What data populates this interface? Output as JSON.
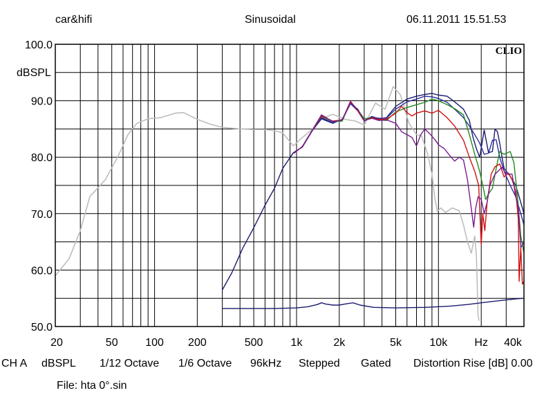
{
  "header": {
    "left": "car&hifi",
    "center": "Sinusoidal",
    "right": "06.11.2011 15.51.53"
  },
  "brand": "CLIO",
  "footer": {
    "items": [
      "CH A",
      "dBSPL",
      "1/12 Octave",
      "1/6 Octave",
      "96kHz",
      "Stepped",
      "Gated",
      "Distortion Rise [dB] 0.00"
    ],
    "file": "File: hta 0°.sin"
  },
  "colors": {
    "grid": "#000000",
    "gray": "#bdbdbd",
    "navy": "#1a1a6e",
    "blue": "#2a2aa0",
    "green": "#1f8a1f",
    "red": "#d01010",
    "purple": "#7a1a90"
  },
  "chart_data": {
    "type": "line",
    "x_scale": "log",
    "xlim": [
      20,
      40000
    ],
    "ylim": [
      50,
      100
    ],
    "ylabel": "dBSPL",
    "y_ticks": [
      {
        "v": 50,
        "label": "50.0"
      },
      {
        "v": 60,
        "label": "60.0"
      },
      {
        "v": 70,
        "label": "70.0"
      },
      {
        "v": 80,
        "label": "80.0"
      },
      {
        "v": 90,
        "label": "90.0"
      },
      {
        "v": 100,
        "label": "100.0"
      }
    ],
    "x_ticks": [
      {
        "v": 20,
        "label": "20"
      },
      {
        "v": 50,
        "label": "50"
      },
      {
        "v": 100,
        "label": "100"
      },
      {
        "v": 200,
        "label": "200"
      },
      {
        "v": 500,
        "label": "500"
      },
      {
        "v": 1000,
        "label": "1k"
      },
      {
        "v": 2000,
        "label": "2k"
      },
      {
        "v": 5000,
        "label": "5k"
      },
      {
        "v": 10000,
        "label": "10k"
      },
      {
        "v": 20000,
        "label": "Hz"
      },
      {
        "v": 40000,
        "label": "40k"
      }
    ],
    "grid": true,
    "series": [
      {
        "color": "gray",
        "points": [
          [
            20,
            59
          ],
          [
            25,
            62
          ],
          [
            30,
            67
          ],
          [
            35,
            73
          ],
          [
            45,
            76
          ],
          [
            55,
            80
          ],
          [
            65,
            84
          ],
          [
            75,
            86
          ],
          [
            90,
            86.8
          ],
          [
            110,
            87
          ],
          [
            140,
            87.8
          ],
          [
            160,
            87.9
          ],
          [
            200,
            86.7
          ],
          [
            250,
            85.8
          ],
          [
            300,
            85.3
          ],
          [
            400,
            85
          ],
          [
            500,
            84.9
          ],
          [
            600,
            84.9
          ],
          [
            700,
            84.7
          ],
          [
            800,
            84.3
          ],
          [
            950,
            82
          ],
          [
            1100,
            83.5
          ],
          [
            1300,
            85
          ],
          [
            1500,
            86.8
          ],
          [
            1800,
            87.6
          ],
          [
            2200,
            86.7
          ],
          [
            2600,
            86.4
          ],
          [
            3000,
            85.7
          ],
          [
            3600,
            89.6
          ],
          [
            4200,
            88.5
          ],
          [
            4800,
            92.5
          ],
          [
            5400,
            91
          ],
          [
            6200,
            86
          ],
          [
            7000,
            84
          ],
          [
            7600,
            83.8
          ],
          [
            8400,
            80.5
          ],
          [
            9000,
            77
          ],
          [
            9400,
            73
          ],
          [
            9800,
            70.4
          ],
          [
            10400,
            71
          ],
          [
            11200,
            70.2
          ],
          [
            12500,
            71
          ],
          [
            14000,
            70.5
          ],
          [
            15000,
            68
          ],
          [
            16000,
            65
          ],
          [
            17000,
            63
          ],
          [
            17500,
            64.5
          ],
          [
            18000,
            66
          ],
          [
            18500,
            62.5
          ],
          [
            19000,
            52
          ],
          [
            19300,
            51
          ]
        ]
      },
      {
        "color": "navy",
        "points": [
          [
            300,
            56.5
          ],
          [
            350,
            59.5
          ],
          [
            420,
            64
          ],
          [
            500,
            67.5
          ],
          [
            600,
            71.5
          ],
          [
            700,
            74.5
          ],
          [
            800,
            78
          ],
          [
            950,
            80.8
          ],
          [
            1100,
            81.8
          ],
          [
            1300,
            84.8
          ],
          [
            1500,
            86.8
          ],
          [
            1800,
            86
          ],
          [
            2100,
            86.7
          ],
          [
            2400,
            89.5
          ],
          [
            2700,
            88.5
          ],
          [
            3000,
            86.5
          ],
          [
            3400,
            87.2
          ],
          [
            3800,
            86.8
          ],
          [
            4300,
            87
          ],
          [
            5000,
            89
          ],
          [
            6000,
            90.3
          ],
          [
            7000,
            90.8
          ],
          [
            8000,
            91.1
          ],
          [
            9000,
            91.3
          ],
          [
            10000,
            91
          ],
          [
            11500,
            90.8
          ],
          [
            13000,
            89.8
          ],
          [
            15000,
            88.5
          ],
          [
            16500,
            86.5
          ],
          [
            17500,
            83.5
          ],
          [
            18500,
            81.5
          ],
          [
            19500,
            80
          ],
          [
            21000,
            84.8
          ],
          [
            22500,
            80.8
          ],
          [
            24000,
            81
          ],
          [
            25000,
            85
          ],
          [
            26000,
            84.5
          ],
          [
            27000,
            82.5
          ],
          [
            28000,
            80
          ],
          [
            29000,
            78
          ],
          [
            32000,
            76.6
          ],
          [
            35000,
            75
          ],
          [
            37000,
            73
          ],
          [
            40000,
            70
          ]
        ]
      },
      {
        "color": "blue",
        "points": [
          [
            960,
            80.7
          ],
          [
            1100,
            81.9
          ],
          [
            1300,
            84.9
          ],
          [
            1500,
            87
          ],
          [
            1800,
            86.1
          ],
          [
            2100,
            86.6
          ],
          [
            2400,
            89.5
          ],
          [
            2700,
            88.2
          ],
          [
            3000,
            86.4
          ],
          [
            3400,
            87.1
          ],
          [
            3800,
            86.9
          ],
          [
            4300,
            86.9
          ],
          [
            5000,
            88.5
          ],
          [
            6000,
            89.8
          ],
          [
            7000,
            90.3
          ],
          [
            8000,
            90.8
          ],
          [
            9000,
            90.7
          ],
          [
            10000,
            90.4
          ],
          [
            11500,
            89.7
          ],
          [
            13000,
            88.5
          ],
          [
            15000,
            87
          ],
          [
            16500,
            85.5
          ],
          [
            18000,
            84
          ],
          [
            19500,
            82.5
          ],
          [
            21000,
            80.5
          ],
          [
            22500,
            80.7
          ],
          [
            24000,
            83
          ],
          [
            25500,
            83.1
          ],
          [
            27000,
            80
          ],
          [
            29000,
            77.5
          ],
          [
            32000,
            75
          ],
          [
            35000,
            73
          ],
          [
            38000,
            70
          ],
          [
            40000,
            68
          ]
        ]
      },
      {
        "color": "green",
        "points": [
          [
            960,
            80.7
          ],
          [
            1100,
            81.9
          ],
          [
            1300,
            84.9
          ],
          [
            1500,
            87.2
          ],
          [
            1800,
            86.3
          ],
          [
            2100,
            86.4
          ],
          [
            2400,
            89.8
          ],
          [
            2700,
            88.4
          ],
          [
            3000,
            86.8
          ],
          [
            3400,
            87
          ],
          [
            3800,
            86.6
          ],
          [
            4300,
            86.5
          ],
          [
            5000,
            88
          ],
          [
            6000,
            88.8
          ],
          [
            7000,
            89.3
          ],
          [
            8000,
            89.7
          ],
          [
            9000,
            90.3
          ],
          [
            10000,
            90
          ],
          [
            11500,
            89.3
          ],
          [
            13000,
            88.6
          ],
          [
            15000,
            87.5
          ],
          [
            16500,
            84
          ],
          [
            18000,
            80.5
          ],
          [
            19500,
            77.5
          ],
          [
            20500,
            75
          ],
          [
            21500,
            72.5
          ],
          [
            22500,
            73.5
          ],
          [
            24000,
            74.5
          ],
          [
            25500,
            78
          ],
          [
            27000,
            81
          ],
          [
            29000,
            80.5
          ],
          [
            32000,
            81
          ],
          [
            34000,
            79
          ],
          [
            36000,
            73
          ],
          [
            38000,
            66
          ],
          [
            40000,
            63
          ]
        ]
      },
      {
        "color": "red",
        "points": [
          [
            960,
            80.7
          ],
          [
            1100,
            81.9
          ],
          [
            1300,
            84.9
          ],
          [
            1500,
            87.3
          ],
          [
            1800,
            86.4
          ],
          [
            2100,
            86.6
          ],
          [
            2400,
            89.9
          ],
          [
            2700,
            88.2
          ],
          [
            3000,
            86.5
          ],
          [
            3400,
            87
          ],
          [
            3800,
            86.7
          ],
          [
            4300,
            86.7
          ],
          [
            5000,
            87.8
          ],
          [
            5500,
            89
          ],
          [
            6000,
            87.9
          ],
          [
            6500,
            87.3
          ],
          [
            7000,
            87.8
          ],
          [
            8000,
            88.2
          ],
          [
            9000,
            87.8
          ],
          [
            10000,
            88.3
          ],
          [
            11500,
            87
          ],
          [
            13000,
            85.5
          ],
          [
            15000,
            83
          ],
          [
            16500,
            80
          ],
          [
            18000,
            77.5
          ],
          [
            19200,
            75
          ],
          [
            20000,
            64.5
          ],
          [
            20500,
            70
          ],
          [
            21200,
            67
          ],
          [
            22000,
            72
          ],
          [
            23500,
            77
          ],
          [
            25000,
            78.3
          ],
          [
            27000,
            78.8
          ],
          [
            29000,
            76.5
          ],
          [
            31000,
            77.2
          ],
          [
            33000,
            76
          ],
          [
            35000,
            74
          ],
          [
            36500,
            69
          ],
          [
            37000,
            58
          ],
          [
            38000,
            64
          ],
          [
            39000,
            57.5
          ],
          [
            40000,
            58
          ]
        ]
      },
      {
        "color": "purple",
        "points": [
          [
            960,
            80.7
          ],
          [
            1100,
            81.9
          ],
          [
            1300,
            84.9
          ],
          [
            1500,
            87.5
          ],
          [
            1800,
            86.3
          ],
          [
            2100,
            86.6
          ],
          [
            2400,
            89.7
          ],
          [
            2700,
            88.4
          ],
          [
            3000,
            86.5
          ],
          [
            3400,
            86.9
          ],
          [
            3800,
            86.5
          ],
          [
            4300,
            86.6
          ],
          [
            5000,
            86
          ],
          [
            5500,
            84.5
          ],
          [
            6000,
            84
          ],
          [
            6500,
            83.5
          ],
          [
            7000,
            82
          ],
          [
            7500,
            84
          ],
          [
            8000,
            85
          ],
          [
            8800,
            84
          ],
          [
            9500,
            83
          ],
          [
            10000,
            82.2
          ],
          [
            11000,
            81.5
          ],
          [
            12000,
            80.3
          ],
          [
            13000,
            79.3
          ],
          [
            14000,
            80
          ],
          [
            15000,
            79.5
          ],
          [
            16000,
            76
          ],
          [
            17000,
            71
          ],
          [
            17700,
            67.6
          ],
          [
            18300,
            71
          ],
          [
            19000,
            73
          ],
          [
            20000,
            72.5
          ],
          [
            21000,
            70
          ],
          [
            22000,
            72
          ],
          [
            23000,
            75
          ],
          [
            25000,
            77
          ],
          [
            28000,
            78.2
          ],
          [
            30000,
            77
          ],
          [
            33000,
            77
          ],
          [
            35000,
            73
          ],
          [
            36500,
            71
          ],
          [
            38000,
            64
          ],
          [
            40000,
            65
          ]
        ]
      },
      {
        "color": "navy",
        "points": [
          [
            300,
            53.2
          ],
          [
            500,
            53.2
          ],
          [
            700,
            53.2
          ],
          [
            1000,
            53.3
          ],
          [
            1200,
            53.5
          ],
          [
            1400,
            53.9
          ],
          [
            1500,
            54.2
          ],
          [
            1600,
            54
          ],
          [
            1800,
            53.8
          ],
          [
            2000,
            53.8
          ],
          [
            2200,
            54
          ],
          [
            2500,
            54.2
          ],
          [
            2800,
            53.8
          ],
          [
            3500,
            53.4
          ],
          [
            5000,
            53.3
          ],
          [
            8000,
            53.4
          ],
          [
            12000,
            53.6
          ],
          [
            16000,
            53.9
          ],
          [
            20000,
            54.2
          ],
          [
            25000,
            54.5
          ],
          [
            30000,
            54.7
          ],
          [
            35000,
            54.9
          ],
          [
            40000,
            55
          ]
        ]
      }
    ]
  }
}
